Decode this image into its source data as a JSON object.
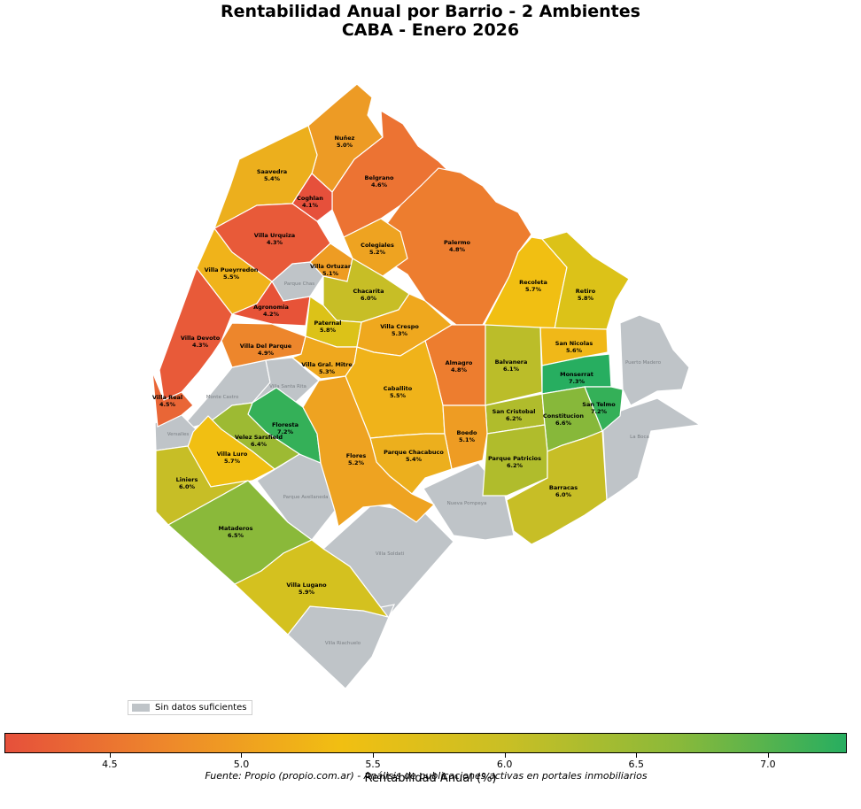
{
  "title": {
    "line1": "Rentabilidad Anual por Barrio - 2 Ambientes",
    "line2": "CABA - Enero 2026"
  },
  "legend": {
    "label": "Sin datos suficientes",
    "color": "#bfc4c8"
  },
  "colorbar": {
    "label": "Rentabilidad Anual (%)",
    "min": 4.1,
    "max": 7.3,
    "ticks": [
      "4.5",
      "5.0",
      "5.5",
      "6.0",
      "6.5",
      "7.0"
    ],
    "gradient": [
      "#e6503b",
      "#ee8a2a",
      "#f1bf12",
      "#c8bf25",
      "#8ab93a",
      "#27ae60"
    ]
  },
  "source": "Fuente: Propio (propio.com.ar) - Análisis de publicaciones activas en portales inmobiliarios",
  "barrios": [
    {
      "name": "Nuñez",
      "value": "5.0%",
      "color": "#ed9b25"
    },
    {
      "name": "Saavedra",
      "value": "5.4%",
      "color": "#ecaf1d"
    },
    {
      "name": "Belgrano",
      "value": "4.6%",
      "color": "#ec7333"
    },
    {
      "name": "Coghlan",
      "value": "4.1%",
      "color": "#e6503b"
    },
    {
      "name": "Villa Urquiza",
      "value": "4.3%",
      "color": "#e85a39"
    },
    {
      "name": "Palermo",
      "value": "4.8%",
      "color": "#ed7d2f"
    },
    {
      "name": "Colegiales",
      "value": "5.2%",
      "color": "#eea321"
    },
    {
      "name": "Villa Pueyrredon",
      "value": "5.5%",
      "color": "#f0b31a"
    },
    {
      "name": "Villa Ortuzar",
      "value": "5.1%",
      "color": "#ee9c23"
    },
    {
      "name": "Chacarita",
      "value": "6.0%",
      "color": "#c7be26"
    },
    {
      "name": "Recoleta",
      "value": "5.7%",
      "color": "#f1bf12"
    },
    {
      "name": "Retiro",
      "value": "5.8%",
      "color": "#dcc218"
    },
    {
      "name": "Agronomia",
      "value": "4.2%",
      "color": "#e75338"
    },
    {
      "name": "Paternal",
      "value": "5.8%",
      "color": "#dcc218"
    },
    {
      "name": "Villa Crespo",
      "value": "5.3%",
      "color": "#efa81e"
    },
    {
      "name": "Villa Devoto",
      "value": "4.3%",
      "color": "#e85a39"
    },
    {
      "name": "Villa Del Parque",
      "value": "4.9%",
      "color": "#ed862c"
    },
    {
      "name": "San Nicolas",
      "value": "5.6%",
      "color": "#f0b818"
    },
    {
      "name": "Villa Gral. Mitre",
      "value": "5.3%",
      "color": "#efa81e"
    },
    {
      "name": "Almagro",
      "value": "4.8%",
      "color": "#ed7d2f"
    },
    {
      "name": "Balvanera",
      "value": "6.1%",
      "color": "#bbbd29"
    },
    {
      "name": "Monserrat",
      "value": "7.3%",
      "color": "#27ae60"
    },
    {
      "name": "Caballito",
      "value": "5.5%",
      "color": "#f0b31a"
    },
    {
      "name": "Villa Real",
      "value": "4.5%",
      "color": "#e96636"
    },
    {
      "name": "Floresta",
      "value": "7.2%",
      "color": "#34b058"
    },
    {
      "name": "San Telmo",
      "value": "7.2%",
      "color": "#34b058"
    },
    {
      "name": "San Cristobal",
      "value": "6.2%",
      "color": "#b0bc2c"
    },
    {
      "name": "Constitucion",
      "value": "6.6%",
      "color": "#87b83a"
    },
    {
      "name": "Velez Sarsfield",
      "value": "6.4%",
      "color": "#9dba33"
    },
    {
      "name": "Boedo",
      "value": "5.1%",
      "color": "#ee9c23"
    },
    {
      "name": "Villa Luro",
      "value": "5.7%",
      "color": "#f1bf12"
    },
    {
      "name": "Parque Chacabuco",
      "value": "5.4%",
      "color": "#ecaf1d"
    },
    {
      "name": "Flores",
      "value": "5.2%",
      "color": "#eea321"
    },
    {
      "name": "Parque Patricios",
      "value": "6.2%",
      "color": "#b0bc2c"
    },
    {
      "name": "Liniers",
      "value": "6.0%",
      "color": "#c7be26"
    },
    {
      "name": "Barracas",
      "value": "6.0%",
      "color": "#c7be26"
    },
    {
      "name": "Mataderos",
      "value": "6.5%",
      "color": "#8ab93a"
    },
    {
      "name": "Villa Lugano",
      "value": "5.9%",
      "color": "#d4c11f"
    }
  ],
  "sin_datos": [
    "Parque Chas",
    "Monte Castro",
    "Villa Santa Rita",
    "Versalles",
    "Parque Avellaneda",
    "Nueva Pompeya",
    "Villa Soldati",
    "Villa Riachuelo",
    "Puerto Madero",
    "La Boca"
  ]
}
